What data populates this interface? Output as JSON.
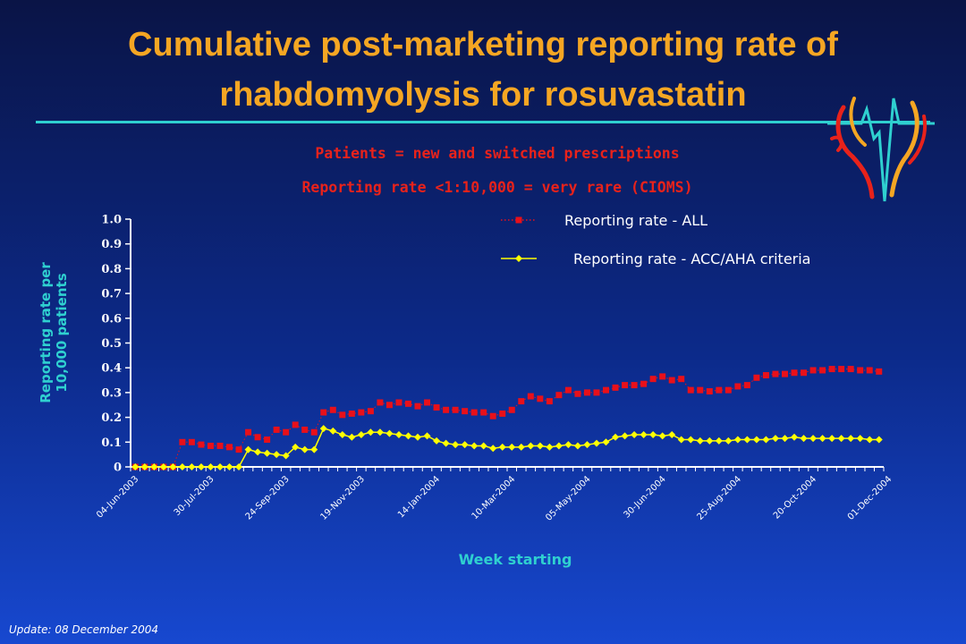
{
  "slide": {
    "title_line1": "Cumulative post-marketing reporting rate of",
    "title_line2": "rhabdomyolysis for rosuvastatin",
    "subtitle1": "Patients = new and switched prescriptions",
    "subtitle2": "Reporting rate <1:10,000 = very rare (CIOMS)",
    "footer": "Update: 08 December 2004"
  },
  "colors": {
    "title": "#f5a623",
    "subtitle": "#e8221b",
    "axis_label": "#2fd0d0",
    "series_all": "#e8101a",
    "series_acc": "#ffff00"
  },
  "chart_data": {
    "type": "line",
    "xlabel": "Week starting",
    "ylabel_line1": "Reporting rate per",
    "ylabel_line2": "10,000 patients",
    "ylim": [
      0,
      1.0
    ],
    "y_ticks": [
      "0",
      "0.1",
      "0.2",
      "0.3",
      "0.4",
      "0.5",
      "0.6",
      "0.7",
      "0.8",
      "0.9",
      "1.0"
    ],
    "x_tick_labels": [
      "04-Jun-2003",
      "30-Jul-2003",
      "24-Sep-2003",
      "19-Nov-2003",
      "14-Jan-2004",
      "10-Mar-2004",
      "05-May-2004",
      "30-Jun-2004",
      "25-Aug-2004",
      "20-Oct-2004",
      "01-Dec-2004"
    ],
    "x_tick_label_every": 8,
    "legend_position": "top-right",
    "series": [
      {
        "name": "Reporting rate - ALL",
        "marker": "square",
        "line": "dotted",
        "values": [
          0,
          0,
          0,
          0,
          0,
          0.1,
          0.1,
          0.09,
          0.085,
          0.085,
          0.08,
          0.07,
          0.14,
          0.12,
          0.11,
          0.15,
          0.14,
          0.17,
          0.15,
          0.14,
          0.22,
          0.23,
          0.21,
          0.215,
          0.22,
          0.225,
          0.26,
          0.25,
          0.26,
          0.255,
          0.245,
          0.26,
          0.24,
          0.23,
          0.23,
          0.225,
          0.22,
          0.22,
          0.205,
          0.215,
          0.23,
          0.265,
          0.285,
          0.275,
          0.265,
          0.29,
          0.31,
          0.295,
          0.3,
          0.3,
          0.31,
          0.32,
          0.33,
          0.33,
          0.335,
          0.355,
          0.365,
          0.35,
          0.355,
          0.31,
          0.31,
          0.305,
          0.31,
          0.31,
          0.325,
          0.33,
          0.36,
          0.37,
          0.375,
          0.375,
          0.38,
          0.38,
          0.39,
          0.39,
          0.395,
          0.395,
          0.395,
          0.39,
          0.39,
          0.385
        ]
      },
      {
        "name": "Reporting rate - ACC/AHA criteria",
        "marker": "diamond",
        "line": "solid",
        "values": [
          0,
          0,
          0,
          0,
          0,
          0,
          0,
          0,
          0,
          0,
          0,
          0,
          0.07,
          0.06,
          0.055,
          0.05,
          0.045,
          0.08,
          0.07,
          0.07,
          0.155,
          0.145,
          0.13,
          0.12,
          0.13,
          0.14,
          0.14,
          0.135,
          0.13,
          0.125,
          0.12,
          0.125,
          0.105,
          0.095,
          0.09,
          0.09,
          0.085,
          0.085,
          0.075,
          0.08,
          0.08,
          0.08,
          0.085,
          0.085,
          0.08,
          0.085,
          0.09,
          0.085,
          0.09,
          0.095,
          0.1,
          0.12,
          0.125,
          0.13,
          0.13,
          0.13,
          0.125,
          0.13,
          0.11,
          0.11,
          0.105,
          0.105,
          0.105,
          0.105,
          0.11,
          0.11,
          0.11,
          0.11,
          0.115,
          0.115,
          0.12,
          0.115,
          0.115,
          0.115,
          0.115,
          0.115,
          0.115,
          0.115,
          0.11,
          0.11
        ]
      }
    ]
  }
}
